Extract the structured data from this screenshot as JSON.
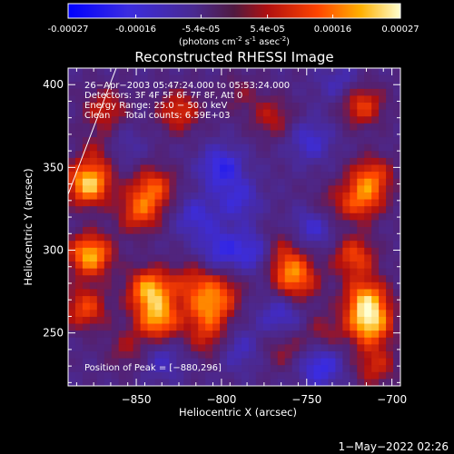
{
  "colorbar": {
    "ticks": [
      "-0.00027",
      "-0.00016",
      "-5.4e-05",
      "5.4e-05",
      "0.00016",
      "0.00027"
    ],
    "tick_values": [
      -0.00027,
      -0.00016,
      -5.4e-05,
      5.4e-05,
      0.00016,
      0.00027
    ],
    "range": [
      -0.00027,
      0.00027
    ],
    "units": {
      "prefix": "(photons cm",
      "sup1": "-2",
      "mid1": " s",
      "sup2": "-1",
      "mid2": " asec",
      "sup3": "-2",
      "suffix": ")"
    },
    "colors": [
      "#0000ff",
      "#4a2bcf",
      "#5a2a90",
      "#b01010",
      "#ff4000",
      "#ffb000",
      "#ffff80",
      "#ffffff"
    ]
  },
  "chart_data": {
    "type": "heatmap",
    "title": "Reconstructed RHESSI Image",
    "xlabel": "Heliocentric X (arcsec)",
    "ylabel": "Heliocentric Y (arcsec)",
    "xlim": [
      -890,
      -695
    ],
    "ylim": [
      218,
      410
    ],
    "xticks": [
      -850,
      -800,
      -750,
      -700
    ],
    "xtick_labels": [
      "−850",
      "−800",
      "−750",
      "−700"
    ],
    "yticks": [
      250,
      300,
      350,
      400
    ],
    "ytick_labels": [
      "250",
      "300",
      "350",
      "400"
    ],
    "annotations": [
      "26−Apr−2003 05:47:24.000 to 05:53:24.000",
      "Detectors: 3F 4F 5F 6F 7F 8F, Att 0",
      "Energy Range: 25.0 − 50.0 keV",
      "Clean     Total counts: 6.59E+03"
    ],
    "peak_label": "Position of Peak = [−880,296]",
    "peak_position": [
      -880,
      296
    ],
    "blobs": [
      {
        "x": -878,
        "y": 340,
        "value": 0.00027
      },
      {
        "x": -877,
        "y": 297,
        "value": 0.00025
      },
      {
        "x": -880,
        "y": 265,
        "value": 0.00016
      },
      {
        "x": -842,
        "y": 276,
        "value": 0.00024
      },
      {
        "x": -837,
        "y": 258,
        "value": 0.00022
      },
      {
        "x": -848,
        "y": 323,
        "value": 0.00016
      },
      {
        "x": -840,
        "y": 338,
        "value": 0.00016
      },
      {
        "x": -825,
        "y": 384,
        "value": 0.00014
      },
      {
        "x": -868,
        "y": 385,
        "value": 0.00012
      },
      {
        "x": -870,
        "y": 360,
        "value": 0.0001
      },
      {
        "x": -808,
        "y": 263,
        "value": 0.00016
      },
      {
        "x": -800,
        "y": 275,
        "value": 0.00012
      },
      {
        "x": -817,
        "y": 280,
        "value": 0.00012
      },
      {
        "x": -808,
        "y": 246,
        "value": 0.0001
      },
      {
        "x": -760,
        "y": 289,
        "value": 0.00014
      },
      {
        "x": -755,
        "y": 280,
        "value": 0.00012
      },
      {
        "x": -770,
        "y": 302,
        "value": 0.00012
      },
      {
        "x": -763,
        "y": 240,
        "value": 8e-05
      },
      {
        "x": -770,
        "y": 380,
        "value": 0.0001
      },
      {
        "x": -718,
        "y": 388,
        "value": 0.00016
      },
      {
        "x": -712,
        "y": 344,
        "value": 0.00016
      },
      {
        "x": -718,
        "y": 330,
        "value": 0.00016
      },
      {
        "x": -722,
        "y": 296,
        "value": 0.00016
      },
      {
        "x": -715,
        "y": 270,
        "value": 0.00022
      },
      {
        "x": -713,
        "y": 255,
        "value": 0.00024
      },
      {
        "x": -710,
        "y": 230,
        "value": 0.00012
      },
      {
        "x": -740,
        "y": 250,
        "value": 8e-05
      },
      {
        "x": -790,
        "y": 395,
        "value": 6e-05
      },
      {
        "x": -855,
        "y": 240,
        "value": 8e-05
      },
      {
        "x": -738,
        "y": 325,
        "value": 8e-05
      },
      {
        "x": -800,
        "y": 300,
        "value": -0.00012
      },
      {
        "x": -800,
        "y": 350,
        "value": -0.00014
      },
      {
        "x": -790,
        "y": 330,
        "value": -0.0001
      },
      {
        "x": -778,
        "y": 300,
        "value": -0.00016
      },
      {
        "x": -745,
        "y": 315,
        "value": -0.00012
      },
      {
        "x": -748,
        "y": 366,
        "value": -0.0001
      },
      {
        "x": -815,
        "y": 320,
        "value": -0.0001
      },
      {
        "x": -742,
        "y": 230,
        "value": -0.00014
      },
      {
        "x": -765,
        "y": 260,
        "value": -0.0001
      },
      {
        "x": -835,
        "y": 234,
        "value": -8e-05
      },
      {
        "x": -860,
        "y": 362,
        "value": -8e-05
      },
      {
        "x": -730,
        "y": 400,
        "value": -8e-05
      },
      {
        "x": -790,
        "y": 240,
        "value": -8e-05
      }
    ]
  },
  "footer": {
    "timestamp": "1−May−2022 02:26"
  }
}
